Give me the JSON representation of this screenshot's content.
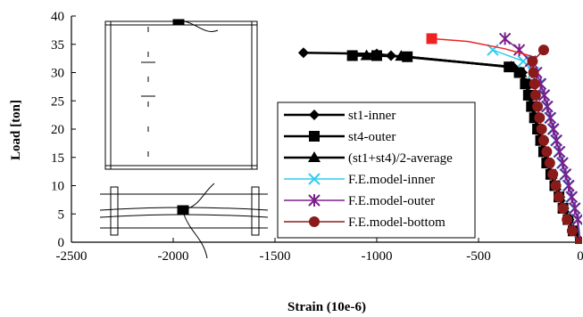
{
  "chart_data": {
    "type": "line",
    "xlabel": "Strain (10e-6)",
    "ylabel": "Load [ton]",
    "xlim": [
      -2500,
      0
    ],
    "ylim": [
      0,
      40
    ],
    "x_ticks": [
      -2500,
      -2000,
      -1500,
      -1000,
      -500,
      0
    ],
    "y_ticks": [
      0,
      5,
      10,
      15,
      20,
      25,
      30,
      35,
      40
    ],
    "x_tick_labels": [
      "-2500",
      "-2000",
      "-1500",
      "-1000",
      "-500",
      "0"
    ],
    "y_tick_labels": [
      "0",
      "5",
      "10",
      "15",
      "20",
      "25",
      "30",
      "35",
      "40"
    ],
    "grid": false,
    "legend_position": "right-middle",
    "series": [
      {
        "name": "st1-inner",
        "color": "#000000",
        "marker": "diamond",
        "points": [
          [
            0,
            0
          ],
          [
            -30,
            2
          ],
          [
            -55,
            4
          ],
          [
            -80,
            6
          ],
          [
            -100,
            8
          ],
          [
            -120,
            10
          ],
          [
            -140,
            12
          ],
          [
            -160,
            14
          ],
          [
            -175,
            16
          ],
          [
            -190,
            18
          ],
          [
            -205,
            20
          ],
          [
            -220,
            22
          ],
          [
            -235,
            24
          ],
          [
            -250,
            26
          ],
          [
            -265,
            28
          ],
          [
            -285,
            30
          ],
          [
            -330,
            31
          ],
          [
            -930,
            33
          ],
          [
            -1000,
            33.3
          ],
          [
            -1360,
            33.5
          ]
        ]
      },
      {
        "name": "st4-outer",
        "color": "#000000",
        "marker": "square",
        "points": [
          [
            0,
            0
          ],
          [
            -35,
            2
          ],
          [
            -60,
            4
          ],
          [
            -85,
            6
          ],
          [
            -105,
            8
          ],
          [
            -125,
            10
          ],
          [
            -145,
            12
          ],
          [
            -165,
            14
          ],
          [
            -180,
            16
          ],
          [
            -195,
            18
          ],
          [
            -210,
            20
          ],
          [
            -225,
            22
          ],
          [
            -240,
            24
          ],
          [
            -255,
            26
          ],
          [
            -270,
            28
          ],
          [
            -300,
            30
          ],
          [
            -350,
            31
          ],
          [
            -850,
            32.8
          ],
          [
            -1000,
            33
          ],
          [
            -1120,
            33
          ]
        ]
      },
      {
        "name": "(st1+st4)/2-average",
        "color": "#000000",
        "marker": "triangle",
        "points": [
          [
            0,
            0
          ],
          [
            -32,
            2
          ],
          [
            -57,
            4
          ],
          [
            -82,
            6
          ],
          [
            -102,
            8
          ],
          [
            -122,
            10
          ],
          [
            -142,
            12
          ],
          [
            -162,
            14
          ],
          [
            -177,
            16
          ],
          [
            -192,
            18
          ],
          [
            -207,
            20
          ],
          [
            -222,
            22
          ],
          [
            -237,
            24
          ],
          [
            -252,
            26
          ],
          [
            -267,
            28
          ],
          [
            -292,
            30
          ],
          [
            -340,
            31
          ],
          [
            -880,
            32.9
          ],
          [
            -1050,
            33
          ]
        ]
      },
      {
        "name": "F.E.model-inner",
        "color": "#33ccee",
        "marker": "x",
        "points": [
          [
            0,
            0
          ],
          [
            -15,
            4
          ],
          [
            -30,
            6
          ],
          [
            -45,
            8
          ],
          [
            -60,
            10
          ],
          [
            -75,
            12
          ],
          [
            -90,
            14
          ],
          [
            -105,
            16
          ],
          [
            -120,
            18
          ],
          [
            -135,
            20
          ],
          [
            -150,
            22
          ],
          [
            -165,
            24
          ],
          [
            -180,
            26
          ],
          [
            -200,
            28
          ],
          [
            -230,
            30
          ],
          [
            -280,
            32
          ],
          [
            -430,
            34
          ]
        ]
      },
      {
        "name": "F.E.model-outer",
        "color": "#7a1e8c",
        "marker": "star",
        "points": [
          [
            0,
            0
          ],
          [
            -12,
            4
          ],
          [
            -27,
            6
          ],
          [
            -42,
            8
          ],
          [
            -57,
            10
          ],
          [
            -72,
            12
          ],
          [
            -87,
            14
          ],
          [
            -102,
            16
          ],
          [
            -117,
            18
          ],
          [
            -132,
            20
          ],
          [
            -147,
            22
          ],
          [
            -162,
            24
          ],
          [
            -177,
            26
          ],
          [
            -195,
            28
          ],
          [
            -215,
            30
          ],
          [
            -245,
            32
          ],
          [
            -300,
            34
          ],
          [
            -370,
            36
          ]
        ]
      },
      {
        "name": "F.E.model-bottom",
        "color": "#8b1a1a",
        "marker": "circle",
        "points": [
          [
            0,
            0
          ],
          [
            -40,
            2
          ],
          [
            -65,
            4
          ],
          [
            -85,
            6
          ],
          [
            -105,
            8
          ],
          [
            -120,
            10
          ],
          [
            -135,
            12
          ],
          [
            -150,
            14
          ],
          [
            -165,
            16
          ],
          [
            -180,
            18
          ],
          [
            -190,
            20
          ],
          [
            -200,
            22
          ],
          [
            -210,
            24
          ],
          [
            -220,
            26
          ],
          [
            -225,
            28
          ],
          [
            -230,
            30
          ],
          [
            -235,
            32
          ],
          [
            -180,
            34
          ]
        ]
      },
      {
        "name": "",
        "color": "#ee2222",
        "marker": "square-red",
        "points": [
          [
            -730,
            36
          ],
          [
            -550,
            35.5
          ],
          [
            -370,
            34.2
          ],
          [
            -250,
            33
          ]
        ]
      }
    ]
  }
}
